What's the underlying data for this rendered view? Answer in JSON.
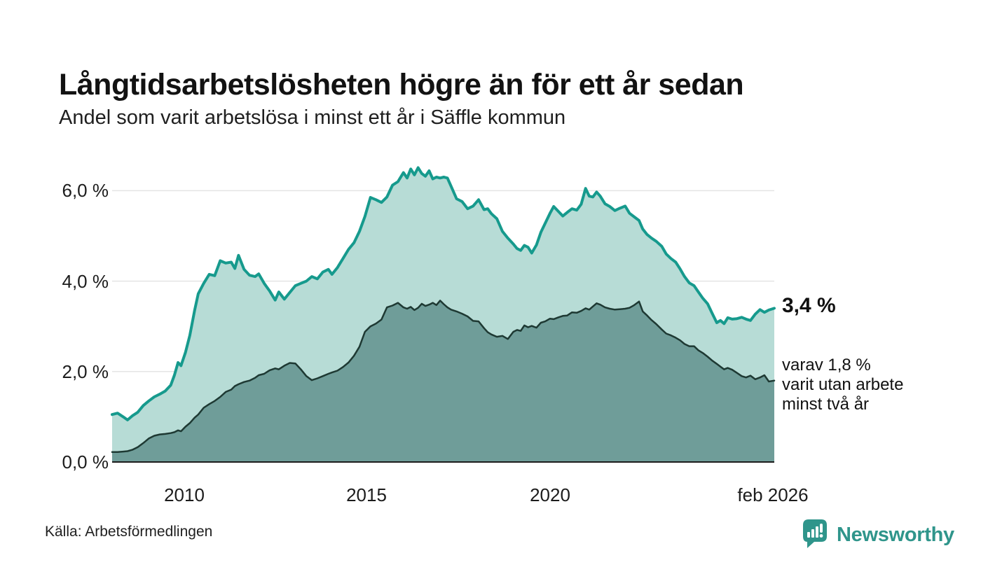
{
  "header": {
    "title": "Långtidsarbetslösheten högre än för ett år sedan",
    "subtitle": "Andel som varit arbetslösa i minst ett år i Säffle kommun"
  },
  "annotations": {
    "latest_value": "3,4 %",
    "secondary_line1": "varav 1,8 %",
    "secondary_line2": "varit utan arbete",
    "secondary_line3": "minst två år"
  },
  "footer": {
    "source": "Källa: Arbetsförmedlingen",
    "logo_text": "Newsworthy"
  },
  "colors": {
    "accent_teal": "#169a8d",
    "light_fill": "#b7dcd6",
    "dark_fill": "#6f9d99",
    "dark_line": "#1e3933",
    "gridline": "#e4e4e4",
    "baseline": "#1c1c1c",
    "logo_teal": "#2f958b"
  },
  "chart_data": {
    "type": "area",
    "title": "Långtidsarbetslösheten högre än för ett år sedan",
    "subtitle": "Andel som varit arbetslösa i minst ett år i Säffle kommun",
    "xlabel": "",
    "ylabel": "",
    "grid": true,
    "x_range": [
      2008.0,
      2026.07
    ],
    "ylim": [
      0,
      6.6
    ],
    "y_ticks": [
      {
        "value": 6,
        "label": "6,0 %"
      },
      {
        "value": 4,
        "label": "4,0 %"
      },
      {
        "value": 2,
        "label": "2,0 %"
      },
      {
        "value": 0,
        "label": "0,0 %"
      }
    ],
    "x_ticks": [
      {
        "value": 2010,
        "label": "2010"
      },
      {
        "value": 2015,
        "label": "2015"
      },
      {
        "value": 2020,
        "label": "2020"
      },
      {
        "value": 2026.07,
        "label": "feb 2026"
      }
    ],
    "x": [
      2008.0,
      2008.15,
      2008.3,
      2008.42,
      2008.55,
      2008.7,
      2008.85,
      2009.0,
      2009.15,
      2009.3,
      2009.45,
      2009.6,
      2009.7,
      2009.8,
      2009.88,
      2010.0,
      2010.12,
      2010.25,
      2010.35,
      2010.5,
      2010.65,
      2010.8,
      2010.95,
      2011.1,
      2011.25,
      2011.35,
      2011.45,
      2011.6,
      2011.75,
      2011.9,
      2012.0,
      2012.15,
      2012.3,
      2012.45,
      2012.55,
      2012.7,
      2012.85,
      2013.0,
      2013.15,
      2013.3,
      2013.45,
      2013.6,
      2013.75,
      2013.9,
      2014.0,
      2014.15,
      2014.3,
      2014.45,
      2014.6,
      2014.75,
      2014.9,
      2015.05,
      2015.2,
      2015.35,
      2015.5,
      2015.65,
      2015.8,
      2015.95,
      2016.05,
      2016.15,
      2016.25,
      2016.35,
      2016.45,
      2016.55,
      2016.65,
      2016.75,
      2016.85,
      2016.95,
      2017.05,
      2017.15,
      2017.25,
      2017.4,
      2017.55,
      2017.7,
      2017.85,
      2018.0,
      2018.15,
      2018.25,
      2018.35,
      2018.5,
      2018.65,
      2018.8,
      2018.95,
      2019.05,
      2019.15,
      2019.25,
      2019.35,
      2019.45,
      2019.58,
      2019.7,
      2019.82,
      2019.95,
      2020.05,
      2020.18,
      2020.3,
      2020.42,
      2020.55,
      2020.68,
      2020.8,
      2020.92,
      2021.02,
      2021.12,
      2021.22,
      2021.32,
      2021.45,
      2021.58,
      2021.72,
      2021.85,
      2022.0,
      2022.12,
      2022.25,
      2022.38,
      2022.48,
      2022.6,
      2022.72,
      2022.85,
      2023.0,
      2023.12,
      2023.25,
      2023.38,
      2023.5,
      2023.62,
      2023.75,
      2023.88,
      2024.0,
      2024.12,
      2024.25,
      2024.38,
      2024.5,
      2024.6,
      2024.7,
      2024.8,
      2024.92,
      2025.05,
      2025.18,
      2025.3,
      2025.42,
      2025.55,
      2025.68,
      2025.8,
      2025.92,
      2026.07
    ],
    "series": [
      {
        "name": "Andel arbetslösa minst ett år",
        "color": "#169a8d",
        "fill": "#b7dcd6",
        "final_label": "3,4 %",
        "values": [
          1.05,
          1.08,
          1.0,
          0.93,
          1.02,
          1.1,
          1.25,
          1.35,
          1.44,
          1.5,
          1.57,
          1.7,
          1.92,
          2.2,
          2.13,
          2.42,
          2.8,
          3.35,
          3.72,
          3.95,
          4.15,
          4.12,
          4.45,
          4.4,
          4.42,
          4.28,
          4.57,
          4.26,
          4.13,
          4.1,
          4.16,
          3.95,
          3.78,
          3.58,
          3.76,
          3.6,
          3.75,
          3.9,
          3.95,
          4.0,
          4.1,
          4.05,
          4.2,
          4.26,
          4.15,
          4.3,
          4.5,
          4.7,
          4.85,
          5.1,
          5.43,
          5.85,
          5.8,
          5.74,
          5.86,
          6.12,
          6.2,
          6.4,
          6.28,
          6.48,
          6.35,
          6.51,
          6.38,
          6.32,
          6.44,
          6.26,
          6.3,
          6.28,
          6.3,
          6.28,
          6.1,
          5.82,
          5.76,
          5.6,
          5.66,
          5.8,
          5.58,
          5.6,
          5.49,
          5.38,
          5.1,
          4.95,
          4.82,
          4.72,
          4.68,
          4.79,
          4.75,
          4.62,
          4.8,
          5.08,
          5.28,
          5.5,
          5.65,
          5.54,
          5.44,
          5.52,
          5.6,
          5.57,
          5.7,
          6.05,
          5.88,
          5.86,
          5.97,
          5.88,
          5.71,
          5.65,
          5.56,
          5.61,
          5.66,
          5.5,
          5.42,
          5.34,
          5.15,
          5.03,
          4.95,
          4.88,
          4.77,
          4.6,
          4.5,
          4.42,
          4.27,
          4.1,
          3.96,
          3.9,
          3.76,
          3.62,
          3.5,
          3.28,
          3.08,
          3.13,
          3.06,
          3.19,
          3.16,
          3.17,
          3.2,
          3.16,
          3.13,
          3.27,
          3.37,
          3.31,
          3.36,
          3.4
        ]
      },
      {
        "name": "varav utan arbete minst två år",
        "color": "#1e3933",
        "fill": "#6f9d99",
        "final_label": "1,8 %",
        "values": [
          0.22,
          0.22,
          0.23,
          0.24,
          0.27,
          0.33,
          0.42,
          0.52,
          0.58,
          0.61,
          0.62,
          0.64,
          0.66,
          0.7,
          0.68,
          0.78,
          0.86,
          0.98,
          1.05,
          1.2,
          1.28,
          1.35,
          1.44,
          1.55,
          1.6,
          1.68,
          1.72,
          1.77,
          1.8,
          1.86,
          1.92,
          1.95,
          2.03,
          2.07,
          2.05,
          2.13,
          2.19,
          2.18,
          2.05,
          1.9,
          1.81,
          1.85,
          1.9,
          1.95,
          1.98,
          2.02,
          2.1,
          2.2,
          2.35,
          2.55,
          2.88,
          3.0,
          3.06,
          3.15,
          3.42,
          3.46,
          3.52,
          3.42,
          3.39,
          3.43,
          3.36,
          3.41,
          3.5,
          3.45,
          3.48,
          3.52,
          3.47,
          3.57,
          3.49,
          3.42,
          3.37,
          3.33,
          3.28,
          3.22,
          3.12,
          3.11,
          2.96,
          2.87,
          2.82,
          2.77,
          2.79,
          2.72,
          2.88,
          2.92,
          2.9,
          3.02,
          2.98,
          3.01,
          2.97,
          3.08,
          3.11,
          3.17,
          3.16,
          3.2,
          3.23,
          3.24,
          3.31,
          3.3,
          3.34,
          3.4,
          3.37,
          3.44,
          3.51,
          3.48,
          3.42,
          3.39,
          3.37,
          3.38,
          3.39,
          3.41,
          3.47,
          3.55,
          3.33,
          3.24,
          3.14,
          3.05,
          2.93,
          2.84,
          2.8,
          2.75,
          2.69,
          2.61,
          2.56,
          2.56,
          2.47,
          2.41,
          2.33,
          2.24,
          2.17,
          2.11,
          2.05,
          2.08,
          2.04,
          1.97,
          1.9,
          1.87,
          1.91,
          1.83,
          1.87,
          1.92,
          1.78,
          1.8
        ]
      }
    ]
  }
}
